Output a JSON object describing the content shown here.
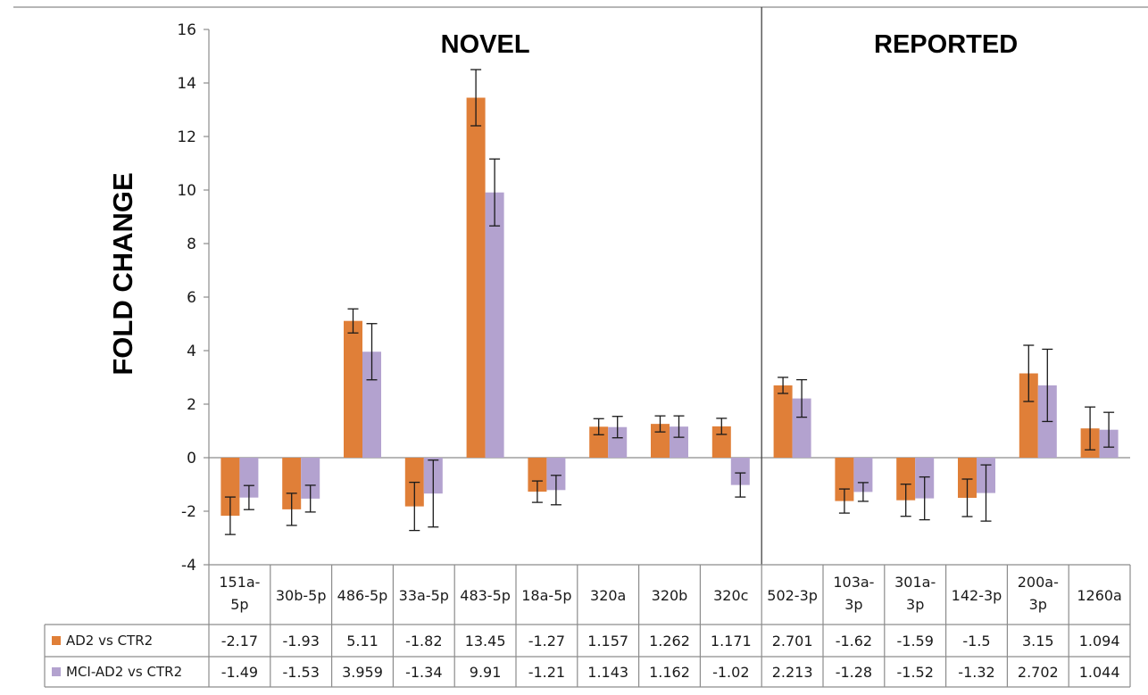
{
  "chart_data": {
    "type": "bar",
    "ylabel": "FOLD CHANGE",
    "ylim": [
      -4,
      16
    ],
    "yticks": [
      -4,
      -2,
      0,
      2,
      4,
      6,
      8,
      10,
      12,
      14,
      16
    ],
    "groups": [
      {
        "label": "NOVEL",
        "start": 0,
        "end": 8
      },
      {
        "label": "REPORTED",
        "start": 9,
        "end": 14
      }
    ],
    "categories": [
      "151a-5p",
      "30b-5p",
      "486-5p",
      "33a-5p",
      "483-5p",
      "18a-5p",
      "320a",
      "320b",
      "320c",
      "502-3p",
      "103a-3p",
      "301a-3p",
      "142-3p",
      "200a-3p",
      "1260a"
    ],
    "series": [
      {
        "name": "AD2 vs CTR2",
        "color": "#E07F38",
        "values": [
          -2.17,
          -1.93,
          5.11,
          -1.82,
          13.45,
          -1.27,
          1.157,
          1.262,
          1.171,
          2.701,
          -1.62,
          -1.59,
          -1.5,
          3.15,
          1.094
        ],
        "value_labels": [
          "-2.17",
          "-1.93",
          "5.11",
          "-1.82",
          "13.45",
          "-1.27",
          "1.157",
          "1.262",
          "1.171",
          "2.701",
          "-1.62",
          "-1.59",
          "-1.5",
          "3.15",
          "1.094"
        ],
        "errors": [
          0.7,
          0.6,
          0.45,
          0.9,
          1.05,
          0.4,
          0.3,
          0.3,
          0.3,
          0.3,
          0.45,
          0.6,
          0.7,
          1.05,
          0.8
        ]
      },
      {
        "name": "MCI-AD2 vs CTR2",
        "color": "#B3A2CF",
        "values": [
          -1.49,
          -1.53,
          3.959,
          -1.34,
          9.91,
          -1.21,
          1.143,
          1.162,
          -1.02,
          2.213,
          -1.28,
          -1.52,
          -1.32,
          2.702,
          1.044
        ],
        "value_labels": [
          "-1.49",
          "-1.53",
          "3.959",
          "-1.34",
          "9.91",
          "-1.21",
          "1.143",
          "1.162",
          "-1.02",
          "2.213",
          "-1.28",
          "-1.52",
          "-1.32",
          "2.702",
          "1.044"
        ],
        "errors": [
          0.45,
          0.5,
          1.05,
          1.25,
          1.25,
          0.55,
          0.4,
          0.4,
          0.45,
          0.7,
          0.35,
          0.8,
          1.05,
          1.35,
          0.65
        ]
      }
    ],
    "legend": "table-left",
    "grid": false
  }
}
